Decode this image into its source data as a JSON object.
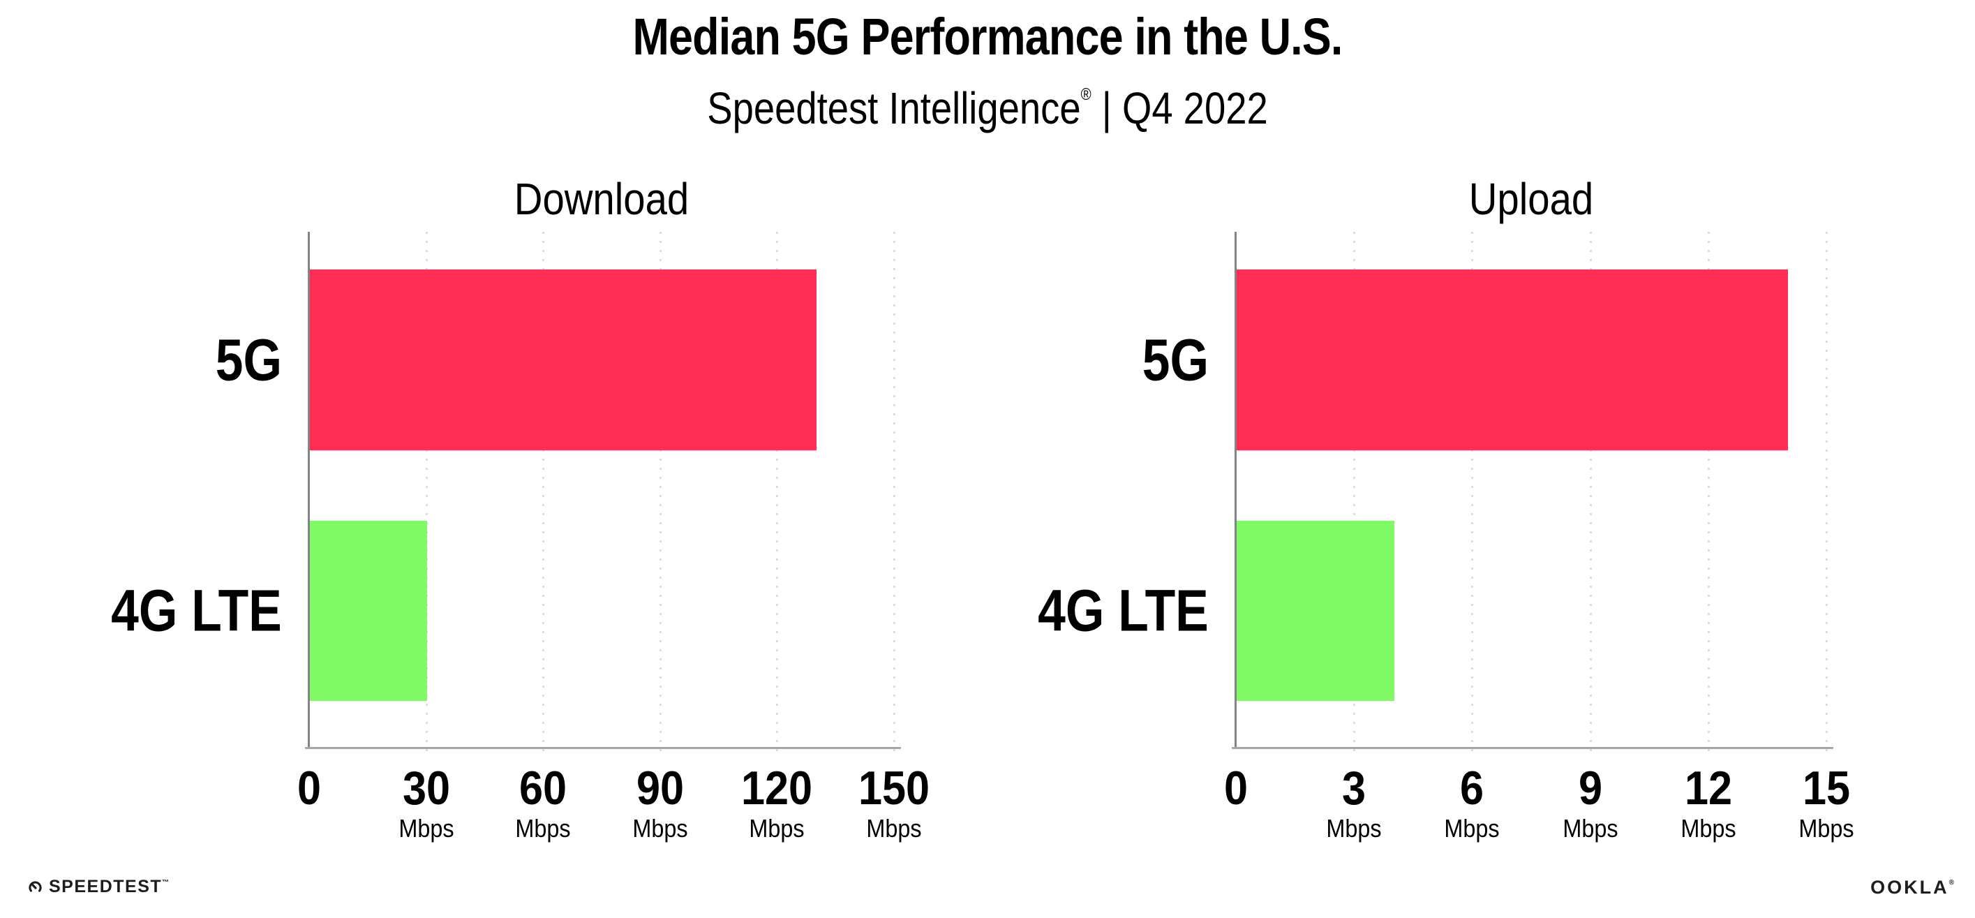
{
  "header": {
    "title": "Median 5G Performance in the U.S.",
    "subtitle_brand": "Speedtest Intelligence",
    "subtitle_mark": "®",
    "subtitle_divider": " | ",
    "subtitle_period": "Q4 2022"
  },
  "chart_data": [
    {
      "type": "bar",
      "orientation": "horizontal",
      "title": "Download",
      "categories": [
        "5G",
        "4G LTE"
      ],
      "values": [
        130,
        30
      ],
      "unit": "Mbps",
      "xlim": [
        0,
        150
      ],
      "xticks": [
        0,
        30,
        60,
        90,
        120,
        150
      ],
      "xtick_unit": "Mbps",
      "bar_colors": [
        "#FF2E54",
        "#80FB66"
      ],
      "grid": "dotted vertical gridlines at ticks",
      "legend": "none"
    },
    {
      "type": "bar",
      "orientation": "horizontal",
      "title": "Upload",
      "categories": [
        "5G",
        "4G LTE"
      ],
      "values": [
        14,
        4
      ],
      "unit": "Mbps",
      "xlim": [
        0,
        15
      ],
      "xticks": [
        0,
        3,
        6,
        9,
        12,
        15
      ],
      "xtick_unit": "Mbps",
      "bar_colors": [
        "#FF2E54",
        "#80FB66"
      ],
      "grid": "dotted vertical gridlines at ticks",
      "legend": "none"
    }
  ],
  "footer": {
    "speedtest_label": "SPEEDTEST",
    "speedtest_mark": "™",
    "ookla_label": "OOKLA",
    "ookla_mark": "®"
  },
  "colors": {
    "bar_5g": "#FF2E54",
    "bar_4g_lte": "#80FB66",
    "gridline": "#C4C4D6",
    "axis_spine": "#83838C",
    "axis_line": "#A6A6AE",
    "text": "#000000",
    "background": "#FFFFFF"
  }
}
